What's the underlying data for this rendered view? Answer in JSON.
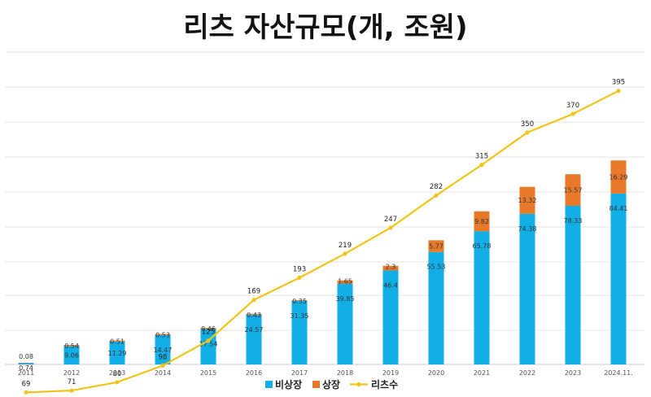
{
  "title": "리츠 자산규모(개, 조원)",
  "chart_data": {
    "type": "bar",
    "stacked": true,
    "categories": [
      "2011",
      "2012",
      "2013",
      "2014",
      "2015",
      "2016",
      "2017",
      "2018",
      "2019",
      "2020",
      "2021",
      "2022",
      "2023",
      "2024.11."
    ],
    "series": [
      {
        "name": "비상장",
        "type": "bar",
        "color": "#12aee6",
        "values": [
          0.74,
          9.06,
          11.29,
          14.47,
          17.54,
          24.57,
          31.35,
          39.85,
          46.4,
          55.53,
          65.78,
          74.38,
          78.33,
          84.41
        ]
      },
      {
        "name": "상장",
        "type": "bar",
        "color": "#e8782a",
        "values": [
          0.08,
          0.54,
          0.51,
          0.53,
          0.46,
          0.43,
          0.35,
          1.65,
          2.3,
          5.77,
          9.82,
          13.32,
          15.57,
          16.29
        ]
      },
      {
        "name": "리츠수",
        "type": "line",
        "color": "#f0c419",
        "values": [
          69,
          71,
          80,
          98,
          125,
          169,
          193,
          219,
          247,
          282,
          315,
          350,
          370,
          395
        ]
      }
    ],
    "grid": true,
    "legend": "bottom-center"
  }
}
